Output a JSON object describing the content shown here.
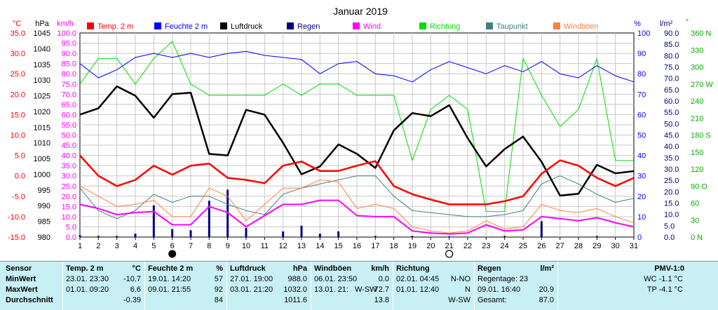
{
  "chart_data": {
    "type": "line",
    "title": "Januar 2019",
    "x": [
      1,
      2,
      3,
      4,
      5,
      6,
      7,
      8,
      9,
      10,
      11,
      12,
      13,
      14,
      15,
      16,
      17,
      18,
      19,
      20,
      21,
      22,
      23,
      24,
      25,
      26,
      27,
      28,
      29,
      30,
      31
    ],
    "legend": [
      {
        "label": "Temp. 2 m",
        "color": "#ff0000"
      },
      {
        "label": "Feuchte  2 m",
        "color": "#0000ff"
      },
      {
        "label": "Luftdruck",
        "color": "#000000"
      },
      {
        "label": "Regen",
        "color": "#000080"
      },
      {
        "label": "Wind",
        "color": "#ff00ff"
      },
      {
        "label": "Richtung",
        "color": "#00e000"
      },
      {
        "label": "Taupunkt",
        "color": "#408080"
      },
      {
        "label": "Windböen",
        "color": "#ff8040"
      }
    ],
    "axes": {
      "temp": {
        "unit": "°C",
        "min": -15,
        "max": 35,
        "ticks": [
          "35.0",
          "30.0",
          "25.0",
          "20.0",
          "15.0",
          "10.0",
          "5.0",
          "0.0",
          "-5.0",
          "-10.0",
          "-15.0"
        ],
        "color": "#ff0000"
      },
      "pressure": {
        "unit": "hPa",
        "min": 980,
        "max": 1045,
        "ticks": [
          "1045",
          "1040",
          "1035",
          "1030",
          "1025",
          "1020",
          "1015",
          "1010",
          "1005",
          "1000",
          "995",
          "990",
          "985",
          "980"
        ],
        "color": "#000000"
      },
      "wind": {
        "unit": "km/h",
        "min": 0,
        "max": 100,
        "ticks": [
          "100.0",
          "95.0",
          "90.0",
          "85.0",
          "80.0",
          "75.0",
          "70.0",
          "65.0",
          "60.0",
          "55.0",
          "50.0",
          "45.0",
          "40.0",
          "35.0",
          "30.0",
          "25.0",
          "20.0",
          "15.0",
          "10.0",
          "5.0",
          "0.0"
        ],
        "color": "#ff00ff"
      },
      "humidity": {
        "unit": "%",
        "min": 0,
        "max": 100,
        "ticks": [
          "100",
          "90",
          "80",
          "70",
          "60",
          "50",
          "40",
          "30",
          "20",
          "10",
          "0"
        ],
        "color": "#0000ff"
      },
      "rain": {
        "unit": "l/m²",
        "min": 0,
        "max": 90,
        "ticks": [
          "90.0",
          "85.0",
          "80.0",
          "75.0",
          "70.0",
          "65.0",
          "60.0",
          "55.0",
          "50.0",
          "45.0",
          "40.0",
          "35.0",
          "30.0",
          "25.0",
          "20.0",
          "15.0",
          "10.0",
          "5.0",
          "0.0"
        ],
        "color": "#000080"
      },
      "direction": {
        "unit": "°",
        "min": 0,
        "max": 360,
        "ticks": [
          "360 N",
          "330",
          "300",
          "270 W",
          "240",
          "210",
          "180 S",
          "150",
          "120",
          "90 O",
          "60",
          "30",
          "0 N"
        ],
        "color": "#00b000"
      }
    },
    "series": [
      {
        "name": "Temp. 2 m",
        "axis": "temp",
        "color": "#ff0000",
        "width": 2.5,
        "values": [
          5,
          0,
          -2.5,
          -1,
          2.5,
          0.3,
          2.5,
          3,
          -0.5,
          -1,
          -1.8,
          2.5,
          3.5,
          1.2,
          1.2,
          2.5,
          3.6,
          -2.5,
          -4.5,
          -5.8,
          -7,
          -7,
          -7,
          -6.2,
          -5,
          0.5,
          3.8,
          2.5,
          -0.5,
          -2.5,
          -0.5
        ]
      },
      {
        "name": "Feuchte  2 m",
        "axis": "humidity",
        "color": "#0000ff",
        "width": 1,
        "values": [
          85,
          78,
          82,
          88,
          90,
          88,
          90,
          88,
          90,
          91,
          89,
          88,
          87,
          80,
          85,
          86,
          80,
          79,
          76,
          82,
          86,
          83,
          80,
          84,
          81,
          86,
          80,
          78,
          84,
          79,
          76
        ]
      },
      {
        "name": "Luftdruck",
        "axis": "pressure",
        "color": "#000000",
        "width": 2.5,
        "values": [
          1019,
          1021,
          1028,
          1025,
          1018,
          1025.5,
          1026,
          1006.5,
          1006,
          1020.5,
          1019,
          1010,
          1000,
          1002.5,
          1009.5,
          1006.5,
          1002,
          1014,
          1019.5,
          1018.5,
          1022,
          1011.5,
          1002.5,
          1008,
          1012,
          1004,
          993.2,
          993.8,
          1003,
          1000.3,
          1001
        ]
      },
      {
        "name": "Wind",
        "axis": "wind",
        "color": "#ff00ff",
        "width": 2,
        "values": [
          16,
          14,
          11,
          12,
          12.5,
          6,
          6,
          15,
          12,
          5,
          10.5,
          16,
          16,
          18,
          18,
          10.5,
          10,
          10,
          3,
          2,
          1.5,
          2,
          6,
          3,
          3.5,
          10,
          9,
          8,
          9.5,
          7,
          5
        ]
      },
      {
        "name": "Richtung",
        "axis": "direction",
        "color": "#00e000",
        "width": 1,
        "values": [
          270,
          315,
          315,
          270,
          315,
          345,
          270,
          250,
          250,
          250,
          250,
          270,
          250,
          270,
          270,
          250,
          250,
          250,
          135,
          225,
          250,
          225,
          45,
          45,
          315,
          250,
          195,
          225,
          315,
          135,
          135
        ]
      },
      {
        "name": "Taupunkt",
        "axis": "temp",
        "color": "#408080",
        "width": 1,
        "values": [
          -3,
          -8.5,
          -10.5,
          -8.5,
          -4.5,
          -6.5,
          -5,
          -5,
          -7,
          -8.5,
          -9.5,
          -4.5,
          -3,
          -2,
          -1,
          0,
          0,
          -5,
          -8.5,
          -9,
          -9.5,
          -10,
          -10,
          -9.5,
          -8.5,
          -2,
          0,
          -2,
          -4.5,
          -6.5,
          -5.5
        ]
      },
      {
        "name": "Windböen",
        "axis": "wind",
        "color": "#ff8040",
        "width": 1,
        "values": [
          25,
          20,
          15,
          16,
          18,
          10,
          10,
          24,
          20,
          8,
          16,
          24,
          24,
          28,
          27,
          14,
          16,
          14,
          5,
          3,
          2,
          3,
          8,
          4,
          5,
          16,
          13,
          12,
          14,
          10,
          7
        ]
      }
    ],
    "rain": {
      "name": "Regen",
      "axis": "rain",
      "color": "#000080",
      "points": [
        [
          1,
          0.8
        ],
        [
          2,
          0.5
        ],
        [
          3,
          0.5
        ],
        [
          4,
          1.5
        ],
        [
          5,
          14
        ],
        [
          6,
          3.5
        ],
        [
          7,
          3
        ],
        [
          8,
          16
        ],
        [
          9,
          20.9
        ],
        [
          10,
          4
        ],
        [
          12,
          2.5
        ],
        [
          13,
          5
        ],
        [
          14,
          1.5
        ],
        [
          15,
          2.5
        ],
        [
          17,
          0.5
        ],
        [
          19,
          0.5
        ],
        [
          21,
          0.3
        ],
        [
          24,
          0.5
        ],
        [
          26,
          7
        ],
        [
          29,
          0.5
        ]
      ]
    },
    "markers": [
      {
        "x": 6,
        "type": "new-moon"
      },
      {
        "x": 21,
        "type": "full-moon"
      }
    ]
  },
  "stats": {
    "sensor": {
      "title": "Sensor",
      "rows": [
        "MinWert",
        "MaxWert",
        "Durchschnitt"
      ]
    },
    "temp": {
      "title": "Temp. 2 m",
      "unit": "°C",
      "min_time": "23.01.  23:30",
      "min_val": "-10.7",
      "max_time": "01.01.  09:20",
      "max_val": "6.6",
      "avg": "-0.39"
    },
    "humidity": {
      "title": "Feuchte  2 m",
      "unit": "%",
      "min_time": "19.01.  14:20",
      "min_val": "57",
      "max_time": "09.01.  21:55",
      "max_val": "92",
      "avg": "84"
    },
    "pressure": {
      "title": "Luftdruck",
      "unit": "hPa",
      "min_time": "27.01.  19:00",
      "min_val": "988.0",
      "max_time": "03.01.  21:20",
      "max_val": "1032.0",
      "avg": "1011.6"
    },
    "gusts": {
      "title": "Windböen",
      "unit": "km/h",
      "min_time": "06.01.  23:50",
      "min_val": "0.0",
      "max_time": "13.01.  21:",
      "max_dir": "W-SW",
      "max_val": "72.7",
      "avg": "13.8"
    },
    "direction": {
      "title": "Richtung",
      "min_time": "02.01.  04:45",
      "min_val": "N-NO",
      "max_time": "01.01.  12:40",
      "max_val": "N",
      "avg": "W-SW"
    },
    "rain": {
      "title": "Regen",
      "unit": "l/m²",
      "row1": "Regentage: 23",
      "row2_time": "09.01.  16:40",
      "row2_val": "20.9",
      "row3_label": "Gesamt:",
      "row3_val": "87.0"
    },
    "pmv": {
      "title": "PMV-1:0",
      "wc": "WC -1.1 °C",
      "tp": "TP -4.1 °C"
    }
  }
}
